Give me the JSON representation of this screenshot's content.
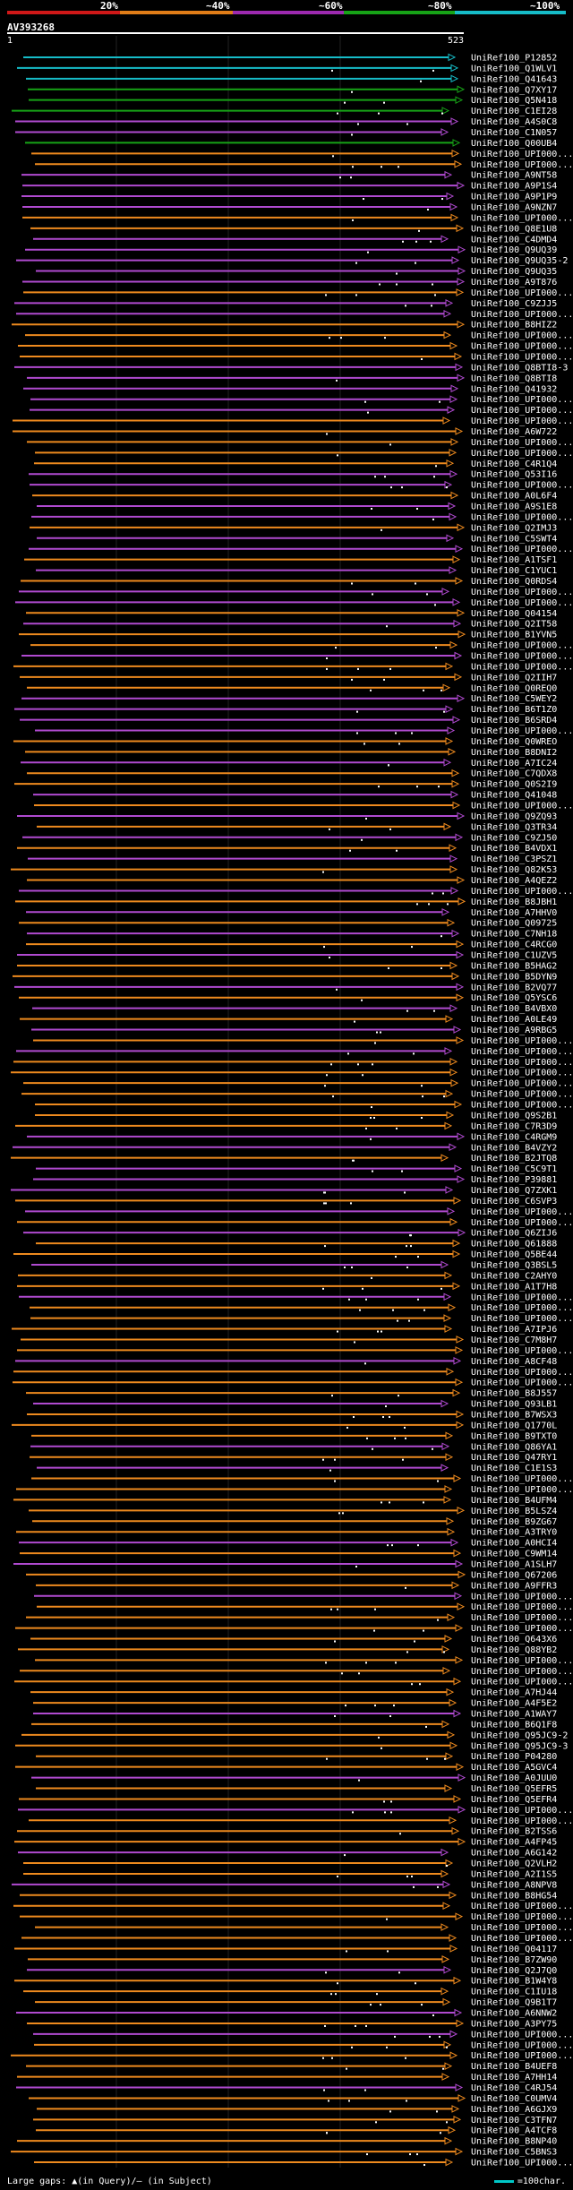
{
  "legend": {
    "labels": [
      "20%",
      "~40%",
      "~60%",
      "~80%",
      "~100%"
    ],
    "colors": [
      "#d01818",
      "#e07d18",
      "#9d2ab0",
      "#17a317",
      "#16bcc8"
    ]
  },
  "query": {
    "name": "AV393268",
    "start": "1",
    "end": "523"
  },
  "footer": {
    "large_gaps": "Large gaps: ▲(in Query)/— (in Subject)",
    "scale": "=100char."
  },
  "hits": [
    {
      "label": "UniRef100_P12852",
      "c": "cyan"
    },
    {
      "label": "UniRef100_Q1WLV1",
      "c": "cyan"
    },
    {
      "label": "UniRef100_Q41643",
      "c": "cyan"
    },
    {
      "label": "UniRef100_Q7XY17",
      "c": "green"
    },
    {
      "label": "UniRef100_Q5N418",
      "c": "green"
    },
    {
      "label": "UniRef100_C1EI28",
      "c": "green"
    },
    {
      "label": "UniRef100_A4S0C8",
      "c": "purple"
    },
    {
      "label": "UniRef100_C1N057",
      "c": "purple"
    },
    {
      "label": "UniRef100_Q00UB4",
      "c": "green"
    },
    {
      "label": "UniRef100_UPI000...",
      "c": "orange"
    },
    {
      "label": "UniRef100_UPI000...",
      "c": "orange"
    },
    {
      "label": "UniRef100_A9NT58",
      "c": "purple"
    },
    {
      "label": "UniRef100_A9P1S4",
      "c": "purple"
    },
    {
      "label": "UniRef100_A9P1P9",
      "c": "purple"
    },
    {
      "label": "UniRef100_A9NZN7",
      "c": "purple"
    },
    {
      "label": "UniRef100_UPI000...",
      "c": "orange"
    },
    {
      "label": "UniRef100_Q8E1U8",
      "c": "orange"
    },
    {
      "label": "UniRef100_C4DMD4",
      "c": "purple"
    },
    {
      "label": "UniRef100_Q9UQ39",
      "c": "purple"
    },
    {
      "label": "UniRef100_Q9UQ35-2",
      "c": "purple"
    },
    {
      "label": "UniRef100_Q9UQ35",
      "c": "purple"
    },
    {
      "label": "UniRef100_A9T876",
      "c": "purple"
    },
    {
      "label": "UniRef100_UPI000...",
      "c": "orange"
    },
    {
      "label": "UniRef100_C9ZJJ5",
      "c": "purple"
    },
    {
      "label": "UniRef100_UPI000...",
      "c": "purple"
    },
    {
      "label": "UniRef100_B8HIZ2",
      "c": "orange"
    },
    {
      "label": "UniRef100_UPI000...",
      "c": "orange"
    },
    {
      "label": "UniRef100_UPI000...",
      "c": "orange"
    },
    {
      "label": "UniRef100_UPI000...",
      "c": "orange"
    },
    {
      "label": "UniRef100_Q8BTI8-3",
      "c": "purple"
    },
    {
      "label": "UniRef100_Q8BTI8",
      "c": "purple"
    },
    {
      "label": "UniRef100_Q41932",
      "c": "purple"
    },
    {
      "label": "UniRef100_UPI000...",
      "c": "purple"
    },
    {
      "label": "UniRef100_UPI000...",
      "c": "purple"
    },
    {
      "label": "UniRef100_UPI000...",
      "c": "orange"
    },
    {
      "label": "UniRef100_A6W722",
      "c": "orange"
    },
    {
      "label": "UniRef100_UPI000...",
      "c": "orange"
    },
    {
      "label": "UniRef100_UPI000...",
      "c": "orange"
    },
    {
      "label": "UniRef100_C4R1Q4",
      "c": "orange"
    },
    {
      "label": "UniRef100_Q53I16",
      "c": "purple"
    },
    {
      "label": "UniRef100_UPI000...",
      "c": "purple"
    },
    {
      "label": "UniRef100_A0L6F4",
      "c": "orange"
    },
    {
      "label": "UniRef100_A9S1E8",
      "c": "purple"
    },
    {
      "label": "UniRef100_UPI000...",
      "c": "purple"
    },
    {
      "label": "UniRef100_Q2IMJ3",
      "c": "orange"
    },
    {
      "label": "UniRef100_C5SWT4",
      "c": "purple"
    },
    {
      "label": "UniRef100_UPI000...",
      "c": "purple"
    },
    {
      "label": "UniRef100_A1TSF1",
      "c": "orange"
    },
    {
      "label": "UniRef100_C1YUC1",
      "c": "purple"
    },
    {
      "label": "UniRef100_Q0RDS4",
      "c": "orange"
    },
    {
      "label": "UniRef100_UPI000...",
      "c": "purple"
    },
    {
      "label": "UniRef100_UPI000...",
      "c": "purple"
    },
    {
      "label": "UniRef100_Q04154",
      "c": "orange"
    },
    {
      "label": "UniRef100_Q2IT58",
      "c": "purple"
    },
    {
      "label": "UniRef100_B1YVN5",
      "c": "orange"
    },
    {
      "label": "UniRef100_UPI000...",
      "c": "orange"
    },
    {
      "label": "UniRef100_UPI000...",
      "c": "purple"
    },
    {
      "label": "UniRef100_UPI000...",
      "c": "orange"
    },
    {
      "label": "UniRef100_Q2IIH7",
      "c": "orange"
    },
    {
      "label": "UniRef100_Q0REQ0",
      "c": "orange"
    },
    {
      "label": "UniRef100_C5WEY2",
      "c": "purple"
    },
    {
      "label": "UniRef100_B6T1Z0",
      "c": "purple"
    },
    {
      "label": "UniRef100_B6SRD4",
      "c": "purple"
    },
    {
      "label": "UniRef100_UPI000...",
      "c": "purple"
    },
    {
      "label": "UniRef100_Q0WREO",
      "c": "orange"
    },
    {
      "label": "UniRef100_B8DNI2",
      "c": "orange"
    },
    {
      "label": "UniRef100_A7IC24",
      "c": "purple"
    },
    {
      "label": "UniRef100_C7QDX8",
      "c": "orange"
    },
    {
      "label": "UniRef100_Q0S2I9",
      "c": "orange"
    },
    {
      "label": "UniRef100_Q41048",
      "c": "purple"
    },
    {
      "label": "UniRef100_UPI000...",
      "c": "orange"
    },
    {
      "label": "UniRef100_Q9ZQ93",
      "c": "purple"
    },
    {
      "label": "UniRef100_Q3TR34",
      "c": "orange"
    },
    {
      "label": "UniRef100_C9ZJ50",
      "c": "purple"
    },
    {
      "label": "UniRef100_B4VDX1",
      "c": "orange"
    },
    {
      "label": "UniRef100_C3PSZ1",
      "c": "purple"
    },
    {
      "label": "UniRef100_Q82K53",
      "c": "orange"
    },
    {
      "label": "UniRef100_A4QEZ2",
      "c": "orange"
    },
    {
      "label": "UniRef100_UPI000...",
      "c": "purple"
    },
    {
      "label": "UniRef100_B8JBH1",
      "c": "orange"
    },
    {
      "label": "UniRef100_A7HHV0",
      "c": "purple"
    },
    {
      "label": "UniRef100_Q09725",
      "c": "orange"
    },
    {
      "label": "UniRef100_C7NH18",
      "c": "purple"
    },
    {
      "label": "UniRef100_C4RCG0",
      "c": "orange"
    },
    {
      "label": "UniRef100_C1UZV5",
      "c": "purple"
    },
    {
      "label": "UniRef100_B5HAG2",
      "c": "orange"
    },
    {
      "label": "UniRef100_B5DYN9",
      "c": "orange"
    },
    {
      "label": "UniRef100_B2VQ77",
      "c": "purple"
    },
    {
      "label": "UniRef100_Q5YSC6",
      "c": "orange"
    },
    {
      "label": "UniRef100_B4VBX0",
      "c": "purple"
    },
    {
      "label": "UniRef100_A0LE49",
      "c": "orange"
    },
    {
      "label": "UniRef100_A9RBG5",
      "c": "purple"
    },
    {
      "label": "UniRef100_UPI000...",
      "c": "orange"
    },
    {
      "label": "UniRef100_UPI000...",
      "c": "purple"
    },
    {
      "label": "UniRef100_UPI000...",
      "c": "orange"
    },
    {
      "label": "UniRef100_UPI000...",
      "c": "orange"
    },
    {
      "label": "UniRef100_UPI000...",
      "c": "orange"
    },
    {
      "label": "UniRef100_UPI000...",
      "c": "orange"
    },
    {
      "label": "UniRef100_UPI000...",
      "c": "orange"
    },
    {
      "label": "UniRef100_Q9S2B1",
      "c": "orange"
    },
    {
      "label": "UniRef100_C7R3D9",
      "c": "orange"
    },
    {
      "label": "UniRef100_C4RGM9",
      "c": "purple"
    },
    {
      "label": "UniRef100_B4VZY2",
      "c": "purple"
    },
    {
      "label": "UniRef100_B2JTQ8",
      "c": "orange"
    },
    {
      "label": "UniRef100_C5C9T1",
      "c": "purple"
    },
    {
      "label": "UniRef100_P39881",
      "c": "purple"
    },
    {
      "label": "UniRef100_Q7ZXK1",
      "c": "purple"
    },
    {
      "label": "UniRef100_C6SVP3",
      "c": "orange"
    },
    {
      "label": "UniRef100_UPI000...",
      "c": "purple"
    },
    {
      "label": "UniRef100_UPI000...",
      "c": "orange"
    },
    {
      "label": "UniRef100_Q6ZIJ6",
      "c": "purple"
    },
    {
      "label": "UniRef100_Q61888",
      "c": "orange"
    },
    {
      "label": "UniRef100_Q5BE44",
      "c": "orange"
    },
    {
      "label": "UniRef100_Q3BSL5",
      "c": "purple"
    },
    {
      "label": "UniRef100_C2AHY0",
      "c": "orange"
    },
    {
      "label": "UniRef100_A1T7H8",
      "c": "orange"
    },
    {
      "label": "UniRef100_UPI000...",
      "c": "purple"
    },
    {
      "label": "UniRef100_UPI000...",
      "c": "orange"
    },
    {
      "label": "UniRef100_UPI000...",
      "c": "orange"
    },
    {
      "label": "UniRef100_A7IPJ6",
      "c": "orange"
    },
    {
      "label": "UniRef100_C7M8H7",
      "c": "orange"
    },
    {
      "label": "UniRef100_UPI000...",
      "c": "orange"
    },
    {
      "label": "UniRef100_A8CF48",
      "c": "purple"
    },
    {
      "label": "UniRef100_UPI000...",
      "c": "orange"
    },
    {
      "label": "UniRef100_UPI000...",
      "c": "orange"
    },
    {
      "label": "UniRef100_B8J557",
      "c": "orange"
    },
    {
      "label": "UniRef100_Q93LB1",
      "c": "purple"
    },
    {
      "label": "UniRef100_B7WSX3",
      "c": "orange"
    },
    {
      "label": "UniRef100_Q1770L",
      "c": "orange"
    },
    {
      "label": "UniRef100_B9TXT0",
      "c": "orange"
    },
    {
      "label": "UniRef100_Q86YA1",
      "c": "purple"
    },
    {
      "label": "UniRef100_Q47RY1",
      "c": "orange"
    },
    {
      "label": "UniRef100_C1E1S3",
      "c": "purple"
    },
    {
      "label": "UniRef100_UPI000...",
      "c": "orange"
    },
    {
      "label": "UniRef100_UPI000...",
      "c": "orange"
    },
    {
      "label": "UniRef100_B4UFM4",
      "c": "orange"
    },
    {
      "label": "UniRef100_B5LSZ4",
      "c": "orange"
    },
    {
      "label": "UniRef100_B9ZG67",
      "c": "orange"
    },
    {
      "label": "UniRef100_A3TRY0",
      "c": "orange"
    },
    {
      "label": "UniRef100_A0HCI4",
      "c": "purple"
    },
    {
      "label": "UniRef100_C9WM14",
      "c": "orange"
    },
    {
      "label": "UniRef100_A1SLH7",
      "c": "purple"
    },
    {
      "label": "UniRef100_Q67206",
      "c": "orange"
    },
    {
      "label": "UniRef100_A9FFR3",
      "c": "orange"
    },
    {
      "label": "UniRef100_UPI000...",
      "c": "purple"
    },
    {
      "label": "UniRef100_UPI000...",
      "c": "orange"
    },
    {
      "label": "UniRef100_UPI000...",
      "c": "orange"
    },
    {
      "label": "UniRef100_UPI000...",
      "c": "orange"
    },
    {
      "label": "UniRef100_Q643X6",
      "c": "orange"
    },
    {
      "label": "UniRef100_Q88YB2",
      "c": "orange"
    },
    {
      "label": "UniRef100_UPI000...",
      "c": "orange"
    },
    {
      "label": "UniRef100_UPI000...",
      "c": "orange"
    },
    {
      "label": "UniRef100_UPI000...",
      "c": "orange"
    },
    {
      "label": "UniRef100_A7HJ44",
      "c": "orange"
    },
    {
      "label": "UniRef100_A4F5E2",
      "c": "orange"
    },
    {
      "label": "UniRef100_A1WAY7",
      "c": "purple"
    },
    {
      "label": "UniRef100_B6Q1F8",
      "c": "orange"
    },
    {
      "label": "UniRef100_Q95JC9-2",
      "c": "orange"
    },
    {
      "label": "UniRef100_Q95JC9-3",
      "c": "orange"
    },
    {
      "label": "UniRef100_P04280",
      "c": "orange"
    },
    {
      "label": "UniRef100_A5GVC4",
      "c": "orange"
    },
    {
      "label": "UniRef100_A0JUU0",
      "c": "purple"
    },
    {
      "label": "UniRef100_Q5EFR5",
      "c": "orange"
    },
    {
      "label": "UniRef100_Q5EFR4",
      "c": "orange"
    },
    {
      "label": "UniRef100_UPI000...",
      "c": "purple"
    },
    {
      "label": "UniRef100_UPI000...",
      "c": "orange"
    },
    {
      "label": "UniRef100_B2TSS6",
      "c": "orange"
    },
    {
      "label": "UniRef100_A4FP45",
      "c": "orange"
    },
    {
      "label": "UniRef100_A6G142",
      "c": "purple"
    },
    {
      "label": "UniRef100_Q2VLH2",
      "c": "orange"
    },
    {
      "label": "UniRef100_A2I1S5",
      "c": "orange"
    },
    {
      "label": "UniRef100_A8NPV8",
      "c": "purple"
    },
    {
      "label": "UniRef100_B8HG54",
      "c": "orange"
    },
    {
      "label": "UniRef100_UPI000...",
      "c": "orange"
    },
    {
      "label": "UniRef100_UPI000...",
      "c": "orange"
    },
    {
      "label": "UniRef100_UPI000...",
      "c": "orange"
    },
    {
      "label": "UniRef100_UPI000...",
      "c": "orange"
    },
    {
      "label": "UniRef100_Q04117",
      "c": "orange"
    },
    {
      "label": "UniRef100_B7ZW90",
      "c": "orange"
    },
    {
      "label": "UniRef100_Q2J7Q0",
      "c": "purple"
    },
    {
      "label": "UniRef100_B1W4Y8",
      "c": "orange"
    },
    {
      "label": "UniRef100_C1IU18",
      "c": "orange"
    },
    {
      "label": "UniRef100_Q9B1T7",
      "c": "orange"
    },
    {
      "label": "UniRef100_A6NNW2",
      "c": "purple"
    },
    {
      "label": "UniRef100_A3PY75",
      "c": "orange"
    },
    {
      "label": "UniRef100_UPI000...",
      "c": "purple"
    },
    {
      "label": "UniRef100_UPI000...",
      "c": "orange"
    },
    {
      "label": "UniRef100_UPI000...",
      "c": "orange"
    },
    {
      "label": "UniRef100_B4UEF8",
      "c": "orange"
    },
    {
      "label": "UniRef100_A7HH14",
      "c": "orange"
    },
    {
      "label": "UniRef100_C4RJ54",
      "c": "purple"
    },
    {
      "label": "UniRef100_C0UMV4",
      "c": "orange"
    },
    {
      "label": "UniRef100_A6GJX9",
      "c": "orange"
    },
    {
      "label": "UniRef100_C3TFN7",
      "c": "orange"
    },
    {
      "label": "UniRef100_A4TCF8",
      "c": "orange"
    },
    {
      "label": "UniRef100_B8NP40",
      "c": "orange"
    },
    {
      "label": "UniRef100_C5BNS3",
      "c": "orange"
    },
    {
      "label": "UniRef100_UPI000...",
      "c": "orange"
    }
  ]
}
